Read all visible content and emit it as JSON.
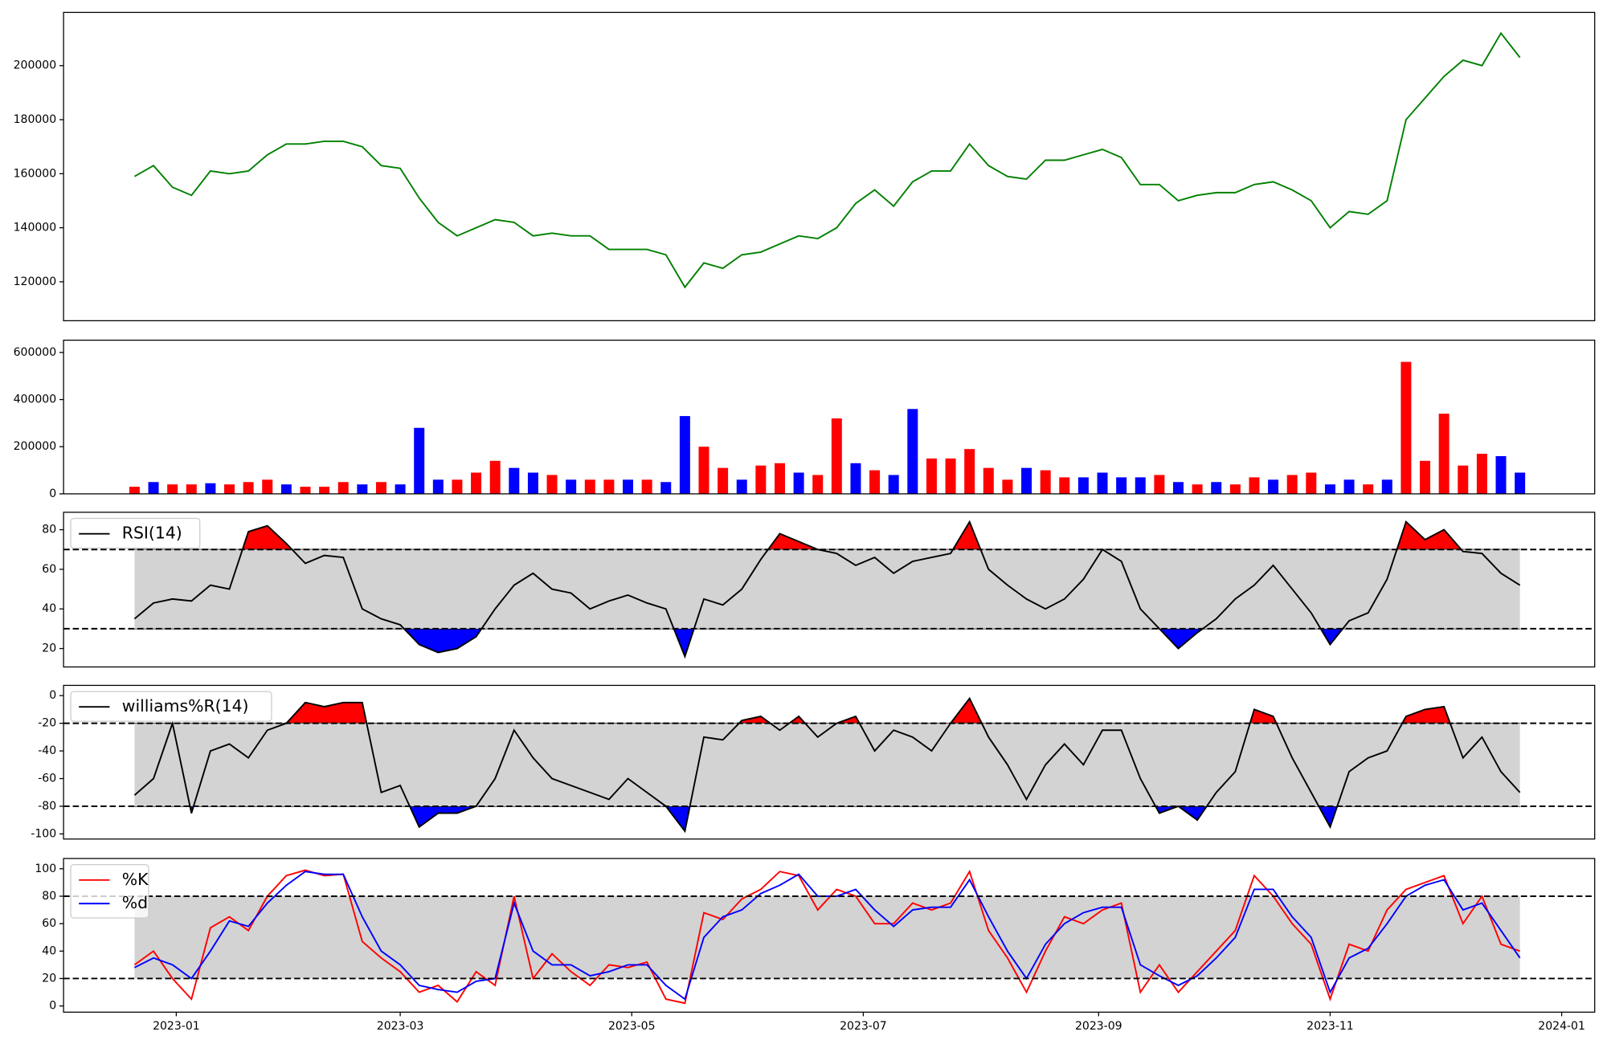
{
  "chart_data": [
    {
      "type": "line",
      "xlim": [
        -29.7,
        373.7
      ],
      "ylim": [
        105600,
        219700
      ],
      "yticks": [
        120000,
        140000,
        160000,
        180000,
        200000
      ],
      "x": [
        -11,
        -6,
        -1,
        4,
        9,
        14,
        19,
        24,
        29,
        34,
        39,
        44,
        49,
        54,
        59,
        64,
        69,
        74,
        79,
        84,
        89,
        94,
        99,
        104,
        109,
        114,
        119,
        124,
        129,
        134,
        139,
        144,
        149,
        154,
        159,
        164,
        169,
        174,
        179,
        184,
        189,
        194,
        199,
        204,
        209,
        214,
        219,
        224,
        229,
        234,
        239,
        244,
        249,
        254,
        259,
        264,
        269,
        274,
        279,
        284,
        289,
        294,
        299,
        304,
        309,
        314,
        319,
        324,
        329,
        334,
        339,
        344,
        349,
        354
      ],
      "series": [
        {
          "color": "green",
          "values": [
            159000,
            163000,
            155000,
            152000,
            161000,
            160000,
            161000,
            167000,
            171000,
            171000,
            172000,
            172000,
            170000,
            163000,
            162000,
            151000,
            142000,
            137000,
            140000,
            143000,
            142000,
            137000,
            138000,
            137000,
            137000,
            132000,
            132000,
            132000,
            130000,
            118000,
            127000,
            125000,
            130000,
            131000,
            134000,
            137000,
            136000,
            140000,
            149000,
            154000,
            148000,
            157000,
            161000,
            161000,
            171000,
            163000,
            159000,
            158000,
            165000,
            165000,
            167000,
            169000,
            166000,
            156000,
            156000,
            150000,
            152000,
            153000,
            153000,
            156000,
            157000,
            154000,
            150000,
            140000,
            146000,
            145000,
            150000,
            180000,
            188000,
            196000,
            202000,
            200000,
            212000,
            203000
          ]
        }
      ]
    },
    {
      "type": "bar",
      "xlim": [
        -29.7,
        373.7
      ],
      "ylim": [
        0,
        652000
      ],
      "yticks": [
        0,
        200000,
        400000,
        600000
      ],
      "x": [
        -11,
        -6,
        -1,
        4,
        9,
        14,
        19,
        24,
        29,
        34,
        39,
        44,
        49,
        54,
        59,
        64,
        69,
        74,
        79,
        84,
        89,
        94,
        99,
        104,
        109,
        114,
        119,
        124,
        129,
        134,
        139,
        144,
        149,
        154,
        159,
        164,
        169,
        174,
        179,
        184,
        189,
        194,
        199,
        204,
        209,
        214,
        219,
        224,
        229,
        234,
        239,
        244,
        249,
        254,
        259,
        264,
        269,
        274,
        279,
        284,
        289,
        294,
        299,
        304,
        309,
        314,
        319,
        324,
        329,
        334,
        339,
        344,
        349,
        354
      ],
      "values": [
        30000,
        50000,
        40000,
        40000,
        45000,
        40000,
        50000,
        60000,
        40000,
        30000,
        30000,
        50000,
        40000,
        50000,
        40000,
        280000,
        60000,
        60000,
        90000,
        140000,
        110000,
        90000,
        80000,
        60000,
        60000,
        60000,
        60000,
        60000,
        50000,
        330000,
        200000,
        110000,
        60000,
        120000,
        130000,
        90000,
        80000,
        320000,
        130000,
        100000,
        80000,
        360000,
        150000,
        150000,
        190000,
        110000,
        60000,
        110000,
        100000,
        70000,
        70000,
        90000,
        70000,
        70000,
        80000,
        50000,
        40000,
        50000,
        40000,
        70000,
        60000,
        80000,
        90000,
        40000,
        60000,
        40000,
        60000,
        560000,
        140000,
        340000,
        120000,
        170000,
        160000,
        90000
      ],
      "colors": [
        "red",
        "blue",
        "red",
        "red",
        "blue",
        "red",
        "red",
        "red",
        "blue",
        "red",
        "red",
        "red",
        "blue",
        "red",
        "blue",
        "blue",
        "blue",
        "red",
        "red",
        "red",
        "blue",
        "blue",
        "red",
        "blue",
        "red",
        "red",
        "blue",
        "red",
        "blue",
        "blue",
        "red",
        "red",
        "blue",
        "red",
        "red",
        "blue",
        "red",
        "red",
        "blue",
        "red",
        "blue",
        "blue",
        "red",
        "red",
        "red",
        "red",
        "red",
        "blue",
        "red",
        "red",
        "blue",
        "blue",
        "blue",
        "blue",
        "red",
        "blue",
        "red",
        "blue",
        "red",
        "red",
        "blue",
        "red",
        "red",
        "blue",
        "blue",
        "red",
        "blue",
        "red",
        "red",
        "red",
        "red",
        "red",
        "blue",
        "blue"
      ]
    },
    {
      "type": "line",
      "xlim": [
        -29.7,
        373.7
      ],
      "ylim": [
        10.7,
        88.8
      ],
      "yticks": [
        20,
        40,
        60,
        80
      ],
      "band": [
        30,
        70
      ],
      "band_color": "lightgray",
      "threshold_fill": {
        "above": "red",
        "below": "blue"
      },
      "legend": "upper left",
      "x": [
        -11,
        -6,
        -1,
        4,
        9,
        14,
        19,
        24,
        29,
        34,
        39,
        44,
        49,
        54,
        59,
        64,
        69,
        74,
        79,
        84,
        89,
        94,
        99,
        104,
        109,
        114,
        119,
        124,
        129,
        134,
        139,
        144,
        149,
        154,
        159,
        164,
        169,
        174,
        179,
        184,
        189,
        194,
        199,
        204,
        209,
        214,
        219,
        224,
        229,
        234,
        239,
        244,
        249,
        254,
        259,
        264,
        269,
        274,
        279,
        284,
        289,
        294,
        299,
        304,
        309,
        314,
        319,
        324,
        329,
        334,
        339,
        344,
        349,
        354
      ],
      "series": [
        {
          "name": "RSI(14)",
          "color": "black",
          "values": [
            35,
            43,
            45,
            44,
            52,
            50,
            79,
            82,
            73,
            63,
            67,
            66,
            40,
            35,
            32,
            22,
            18,
            20,
            26,
            40,
            52,
            58,
            50,
            48,
            40,
            44,
            47,
            43,
            40,
            16,
            45,
            42,
            50,
            65,
            78,
            74,
            70,
            68,
            62,
            66,
            58,
            64,
            66,
            68,
            84,
            60,
            52,
            45,
            40,
            45,
            55,
            70,
            64,
            40,
            30,
            20,
            28,
            35,
            45,
            52,
            62,
            50,
            38,
            22,
            34,
            38,
            55,
            84,
            75,
            80,
            69,
            68,
            58,
            52
          ]
        }
      ]
    },
    {
      "type": "line",
      "xlim": [
        -29.7,
        373.7
      ],
      "ylim": [
        -103.7,
        7.4
      ],
      "yticks": [
        -100,
        -80,
        -60,
        -40,
        -20,
        0
      ],
      "band": [
        -80,
        -20
      ],
      "band_color": "lightgray",
      "threshold_fill": {
        "above": "red",
        "below": "blue"
      },
      "legend": "upper left",
      "x": [
        -11,
        -6,
        -1,
        4,
        9,
        14,
        19,
        24,
        29,
        34,
        39,
        44,
        49,
        54,
        59,
        64,
        69,
        74,
        79,
        84,
        89,
        94,
        99,
        104,
        109,
        114,
        119,
        124,
        129,
        134,
        139,
        144,
        149,
        154,
        159,
        164,
        169,
        174,
        179,
        184,
        189,
        194,
        199,
        204,
        209,
        214,
        219,
        224,
        229,
        234,
        239,
        244,
        249,
        254,
        259,
        264,
        269,
        274,
        279,
        284,
        289,
        294,
        299,
        304,
        309,
        314,
        319,
        324,
        329,
        334,
        339,
        344,
        349,
        354
      ],
      "series": [
        {
          "name": "williams%R(14)",
          "color": "black",
          "values": [
            -72,
            -60,
            -20,
            -85,
            -40,
            -35,
            -45,
            -25,
            -20,
            -5,
            -8,
            -5,
            -5,
            -70,
            -65,
            -95,
            -85,
            -85,
            -80,
            -60,
            -25,
            -45,
            -60,
            -65,
            -70,
            -75,
            -60,
            -70,
            -80,
            -98,
            -30,
            -32,
            -18,
            -15,
            -25,
            -15,
            -30,
            -20,
            -15,
            -40,
            -25,
            -30,
            -40,
            -20,
            -2,
            -30,
            -50,
            -75,
            -50,
            -35,
            -50,
            -25,
            -25,
            -60,
            -85,
            -80,
            -90,
            -70,
            -55,
            -10,
            -15,
            -45,
            -70,
            -95,
            -55,
            -45,
            -40,
            -15,
            -10,
            -8,
            -45,
            -30,
            -55,
            -70
          ]
        }
      ]
    },
    {
      "type": "line",
      "xlim": [
        -29.7,
        373.7
      ],
      "ylim": [
        -4.5,
        107.5
      ],
      "yticks": [
        0,
        20,
        40,
        60,
        80,
        100
      ],
      "band": [
        20,
        80
      ],
      "band_color": "lightgray",
      "legend": "upper left",
      "xticks": [
        {
          "value": 0,
          "label": "2023-01"
        },
        {
          "value": 59,
          "label": "2023-03"
        },
        {
          "value": 120,
          "label": "2023-05"
        },
        {
          "value": 181,
          "label": "2023-07"
        },
        {
          "value": 243,
          "label": "2023-09"
        },
        {
          "value": 304,
          "label": "2023-11"
        },
        {
          "value": 365,
          "label": "2024-01"
        }
      ],
      "x": [
        -11,
        -6,
        -1,
        4,
        9,
        14,
        19,
        24,
        29,
        34,
        39,
        44,
        49,
        54,
        59,
        64,
        69,
        74,
        79,
        84,
        89,
        94,
        99,
        104,
        109,
        114,
        119,
        124,
        129,
        134,
        139,
        144,
        149,
        154,
        159,
        164,
        169,
        174,
        179,
        184,
        189,
        194,
        199,
        204,
        209,
        214,
        219,
        224,
        229,
        234,
        239,
        244,
        249,
        254,
        259,
        264,
        269,
        274,
        279,
        284,
        289,
        294,
        299,
        304,
        309,
        314,
        319,
        324,
        329,
        334,
        339,
        344,
        349,
        354
      ],
      "series": [
        {
          "name": "%K",
          "color": "red",
          "values": [
            30,
            40,
            20,
            5,
            57,
            65,
            55,
            80,
            95,
            99,
            95,
            96,
            47,
            35,
            25,
            10,
            15,
            3,
            25,
            15,
            80,
            20,
            38,
            25,
            15,
            30,
            28,
            32,
            5,
            2,
            68,
            63,
            78,
            85,
            98,
            95,
            70,
            85,
            80,
            60,
            60,
            75,
            70,
            75,
            98,
            55,
            35,
            10,
            40,
            65,
            60,
            70,
            75,
            10,
            30,
            10,
            25,
            40,
            55,
            95,
            80,
            60,
            45,
            5,
            45,
            40,
            70,
            85,
            90,
            95,
            60,
            80,
            45,
            40
          ]
        },
        {
          "name": "%d",
          "color": "blue",
          "values": [
            28,
            35,
            30,
            20,
            40,
            62,
            58,
            75,
            88,
            98,
            96,
            96,
            65,
            40,
            30,
            15,
            12,
            10,
            18,
            20,
            75,
            40,
            30,
            30,
            22,
            25,
            30,
            30,
            15,
            5,
            50,
            65,
            70,
            82,
            88,
            96,
            80,
            80,
            85,
            70,
            58,
            70,
            72,
            72,
            92,
            65,
            40,
            20,
            45,
            60,
            68,
            72,
            72,
            30,
            22,
            15,
            22,
            35,
            50,
            85,
            85,
            65,
            50,
            10,
            35,
            42,
            60,
            80,
            88,
            92,
            70,
            75,
            55,
            35
          ]
        }
      ]
    }
  ]
}
